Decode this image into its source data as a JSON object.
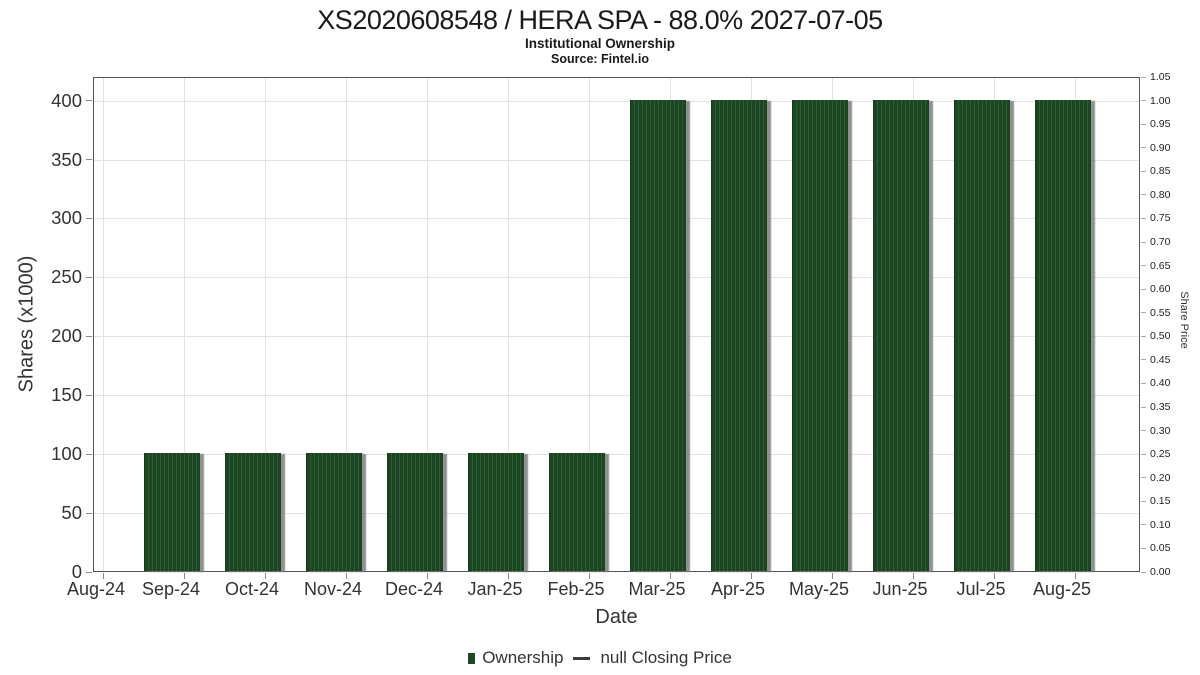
{
  "chart_data": {
    "type": "bar",
    "title": "XS2020608548 / HERA SPA - 88.0% 2027-07-05",
    "subtitle": "Institutional Ownership",
    "source": "Source: Fintel.io",
    "xlabel": "Date",
    "ylabel_left": "Shares (x1000)",
    "ylabel_right": "Share Price",
    "categories": [
      "Aug-24",
      "Sep-24",
      "Oct-24",
      "Nov-24",
      "Dec-24",
      "Jan-25",
      "Feb-25",
      "Mar-25",
      "Apr-25",
      "May-25",
      "Jun-25",
      "Jul-25",
      "Aug-25"
    ],
    "series": [
      {
        "name": "Ownership",
        "type": "bar",
        "color": "#1d4823",
        "values": [
          null,
          100,
          100,
          100,
          100,
          100,
          100,
          400,
          400,
          400,
          400,
          400,
          400
        ]
      },
      {
        "name": "null Closing Price",
        "type": "line",
        "color": "#3c3c3c",
        "values": [
          null,
          null,
          null,
          null,
          null,
          null,
          null,
          null,
          null,
          null,
          null,
          null,
          null
        ]
      }
    ],
    "yticks_left": [
      "0",
      "50",
      "100",
      "150",
      "200",
      "250",
      "300",
      "350",
      "400"
    ],
    "yticks_right": [
      "0.00",
      "0.05",
      "0.10",
      "0.15",
      "0.20",
      "0.25",
      "0.30",
      "0.35",
      "0.40",
      "0.45",
      "0.50",
      "0.55",
      "0.60",
      "0.65",
      "0.70",
      "0.75",
      "0.80",
      "0.85",
      "0.90",
      "0.95",
      "1.00",
      "1.05"
    ],
    "ylim_left": [
      0,
      420
    ],
    "ylim_right": [
      0,
      1.05
    ],
    "grid": true,
    "legend_position": "bottom",
    "colors": {
      "bar": "#1d4823",
      "bar_stripe": "#2e5b34",
      "bar_shadow": "#7d7d7d",
      "grid": "#e2e2e2",
      "axis_border": "#555555",
      "text": "#333333",
      "background": "#ffffff"
    }
  }
}
